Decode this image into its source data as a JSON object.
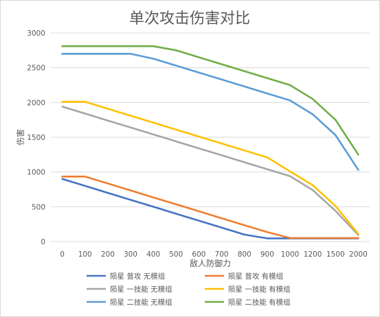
{
  "chart_data": {
    "type": "line",
    "title": "单次攻击伤害对比",
    "xlabel": "敌人防御力",
    "ylabel": "伤害",
    "x": [
      "0",
      "100",
      "200",
      "300",
      "400",
      "500",
      "600",
      "700",
      "800",
      "900",
      "1000",
      "1200",
      "1500",
      "2000"
    ],
    "ylim": [
      0,
      3000
    ],
    "yticks": [
      0,
      500,
      1000,
      1500,
      2000,
      2500,
      3000
    ],
    "grid": true,
    "legend_position": "bottom",
    "series": [
      {
        "name": "陨星 普攻 无模组",
        "color": "#4472C4",
        "values": [
          900,
          800,
          700,
          600,
          500,
          400,
          300,
          200,
          100,
          45,
          45,
          45,
          45,
          45
        ]
      },
      {
        "name": "陨星 普攻 有模组",
        "color": "#ED7D31",
        "values": [
          935,
          935,
          835,
          735,
          635,
          535,
          435,
          335,
          235,
          135,
          50,
          50,
          50,
          50
        ]
      },
      {
        "name": "陨星 一技能 无模组",
        "color": "#A5A5A5",
        "values": [
          1940,
          1840,
          1740,
          1640,
          1540,
          1440,
          1340,
          1240,
          1140,
          1040,
          940,
          740,
          440,
          95
        ]
      },
      {
        "name": "陨星 一技能 有模组",
        "color": "#FFC000",
        "values": [
          2010,
          2010,
          1910,
          1810,
          1710,
          1610,
          1510,
          1410,
          1310,
          1210,
          1010,
          810,
          510,
          110
        ]
      },
      {
        "name": "陨星 二技能 无模组",
        "color": "#5B9BD5",
        "values": [
          2700,
          2700,
          2700,
          2700,
          2630,
          2530,
          2430,
          2330,
          2230,
          2130,
          2030,
          1830,
          1530,
          1030
        ]
      },
      {
        "name": "陨星 二技能 有模组",
        "color": "#70AD47",
        "values": [
          2810,
          2810,
          2810,
          2810,
          2810,
          2750,
          2650,
          2550,
          2450,
          2350,
          2250,
          2050,
          1750,
          1250
        ]
      }
    ]
  }
}
